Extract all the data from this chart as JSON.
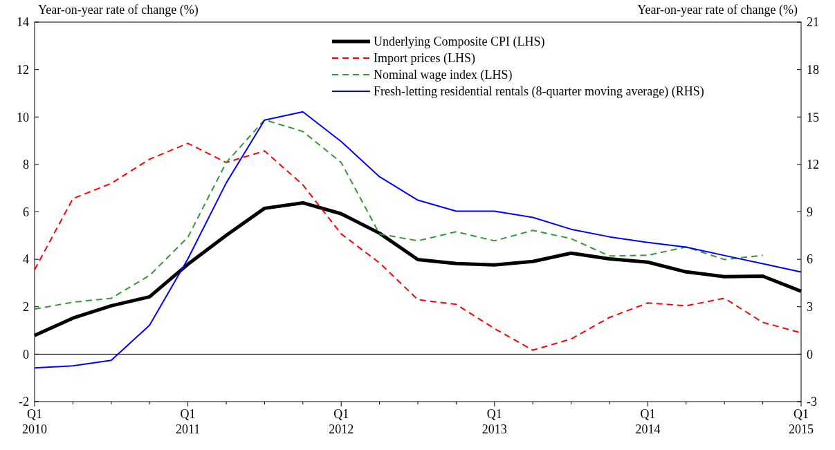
{
  "chart_data": {
    "type": "line",
    "ylabel": "Year-on-year rate of change (%)",
    "y2label": "Year-on-year rate of change (%)",
    "categories": [
      "Q1 2010",
      null,
      null,
      null,
      "Q1 2011",
      null,
      null,
      null,
      "Q1 2012",
      null,
      null,
      null,
      "Q1 2013",
      null,
      null,
      null,
      "Q1 2014",
      null,
      null,
      null,
      "Q1 2015"
    ],
    "series": [
      {
        "name": "Underlying Composite CPI (LHS)",
        "color": "#000000",
        "line_style": "solid",
        "values": [
          0.79,
          1.52,
          2.04,
          2.42,
          3.79,
          5.01,
          6.15,
          6.38,
          5.92,
          5.1,
          3.99,
          3.82,
          3.76,
          3.91,
          4.26,
          4.02,
          3.88,
          3.47,
          3.27,
          3.29,
          2.65
        ]
      },
      {
        "name": "Import prices (LHS)",
        "color": "#ff0000",
        "line_style": "dashed",
        "values": [
          3.56,
          6.56,
          7.2,
          8.22,
          8.89,
          8.08,
          8.57,
          7.14,
          5.07,
          3.85,
          2.3,
          2.1,
          1.08,
          0.17,
          0.64,
          1.55,
          2.16,
          2.04,
          2.36,
          1.34,
          0.9
        ]
      },
      {
        "name": "Nominal wage index (LHS)",
        "color": "#339933",
        "line_style": "dashed",
        "values": [
          1.9,
          2.19,
          2.36,
          3.32,
          4.93,
          8.08,
          9.88,
          9.39,
          8.08,
          5.07,
          4.78,
          5.16,
          4.78,
          5.22,
          4.87,
          4.14,
          4.17,
          4.52,
          3.99,
          4.17,
          null
        ]
      },
      {
        "name": "Fresh-letting residential rentals (8-quarter moving average) (RHS)",
        "color": "#0000ff",
        "line_style": "solid",
        "axis": "y2",
        "values": [
          -0.87,
          -0.74,
          -0.39,
          1.83,
          6.03,
          10.83,
          14.8,
          15.33,
          13.45,
          11.22,
          9.74,
          9.04,
          9.04,
          8.65,
          7.9,
          7.42,
          7.07,
          6.77,
          6.24,
          5.72,
          5.2
        ]
      }
    ],
    "ylim": [
      -2,
      14
    ],
    "yticks": [
      -2,
      0,
      2,
      4,
      6,
      8,
      10,
      12,
      14
    ],
    "y2lim": [
      -3,
      21
    ],
    "y2ticks": [
      -3,
      0,
      3,
      6,
      9,
      12,
      15,
      18,
      21
    ],
    "ref_lines": [
      {
        "axis": "y",
        "value": 0,
        "color": "#000000"
      }
    ],
    "legend": "top right",
    "grid": false
  }
}
